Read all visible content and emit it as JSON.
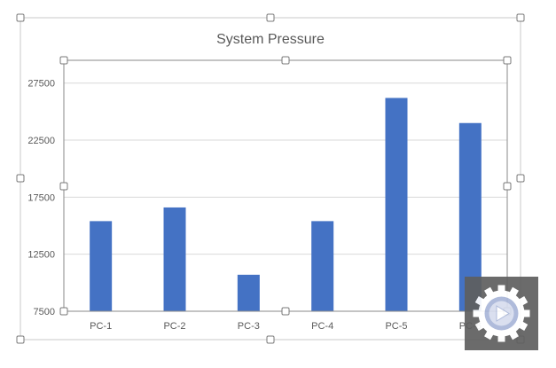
{
  "chart_data": {
    "type": "bar",
    "title": "System Pressure",
    "categories": [
      "PC-1",
      "PC-2",
      "PC-3",
      "PC-4",
      "PC-5",
      "PC-6"
    ],
    "values": [
      15400,
      16600,
      10700,
      15400,
      26200,
      24000
    ],
    "yticks": [
      7500,
      12500,
      17500,
      22500,
      27500
    ],
    "ylim": [
      7500,
      29500
    ],
    "xlabel": "",
    "ylabel": "",
    "grid": true,
    "legend": "none",
    "bar_color": "#4472c4"
  },
  "overlay": {
    "icon": "gear-play-icon",
    "background_color": "#5f5f5f",
    "icon_color": "#ffffff",
    "accent_color": "#a9b6d8"
  }
}
